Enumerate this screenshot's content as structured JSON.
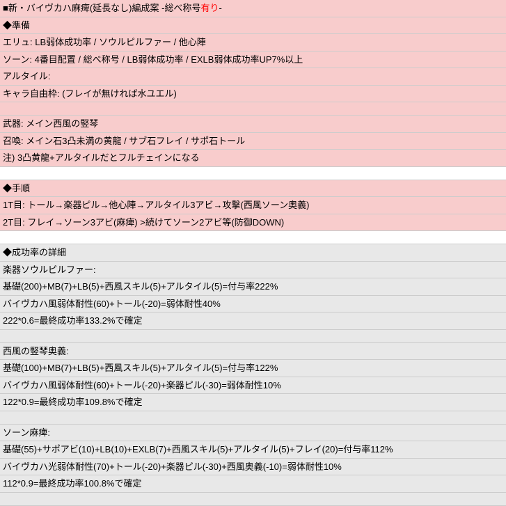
{
  "title": {
    "prefix": "■新・バイヴカハ麻痺(延長なし)編成案 -総べ称号",
    "highlight": "有り",
    "suffix": "-"
  },
  "section1": {
    "header": "◆準備",
    "rows": [
      "エリュ: LB弱体成功率 / ソウルピルファー / 他心陣",
      "ソーン: 4番目配置 / 総べ称号 / LB弱体成功率 / EXLB弱体成功率UP7%以上",
      "アルタイル:",
      "キャラ自由枠: (フレイが無ければ水ユエル)",
      "",
      "武器: メイン西風の竪琴",
      "召喚: メイン石3凸未満の黄龍 / サブ石フレイ / サポ石トール",
      "注) 3凸黄龍+アルタイルだとフルチェインになる"
    ]
  },
  "section2": {
    "header": "◆手順",
    "rows": [
      "1T目: トール→楽器ピル→他心陣→アルタイル3アビ→攻撃(西風ソーン奧義)",
      "2T目: フレイ→ソーン3アビ(麻痺) >続けてソーン2アビ等(防御DOWN)"
    ]
  },
  "section3": {
    "header": "◆成功率の詳細",
    "group1": {
      "title": "楽器ソウルピルファー:",
      "lines": [
        "基礎(200)+MB(7)+LB(5)+西風スキル(5)+アルタイル(5)=付与率222%",
        "バイヴカハ風弱体耐性(60)+トール(-20)=弱体耐性40%",
        "222*0.6=最終成功率133.2%で確定"
      ]
    },
    "group2": {
      "title": "西風の竪琴奥義:",
      "lines": [
        "基礎(100)+MB(7)+LB(5)+西風スキル(5)+アルタイル(5)=付与率122%",
        "バイヴカハ風弱体耐性(60)+トール(-20)+楽器ピル(-30)=弱体耐性10%",
        "122*0.9=最終成功率109.8%で確定"
      ]
    },
    "group3": {
      "title": "ソーン麻痺:",
      "lines": [
        "基礎(55)+サポアビ(10)+LB(10)+EXLB(7)+西風スキル(5)+アルタイル(5)+フレイ(20)=付与率112%",
        "バイヴカハ光弱体耐性(70)+トール(-20)+楽器ピル(-30)+西風奥義(-10)=弱体耐性10%",
        "112*0.9=最終成功率100.8%で確定"
      ]
    }
  }
}
